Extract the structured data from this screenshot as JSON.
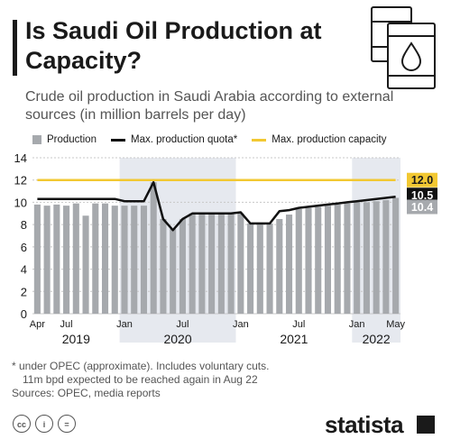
{
  "header": {
    "title": "Is Saudi Oil Production at Capacity?",
    "subtitle": "Crude oil production in Saudi Arabia according to external sources (in million barrels per day)",
    "icon": "oil-barrels-icon"
  },
  "legend": {
    "production": "Production",
    "quota": "Max. production quota*",
    "capacity": "Max. production capacity"
  },
  "colors": {
    "production": "#a6a9ad",
    "quota": "#111111",
    "capacity": "#f2c832",
    "shade": "#e6e9ef"
  },
  "chart_data": {
    "type": "bar",
    "x": [
      "2019-04",
      "2019-05",
      "2019-06",
      "2019-07",
      "2019-08",
      "2019-09",
      "2019-10",
      "2019-11",
      "2019-12",
      "2020-01",
      "2020-02",
      "2020-03",
      "2020-04",
      "2020-05",
      "2020-06",
      "2020-07",
      "2020-08",
      "2020-09",
      "2020-10",
      "2020-11",
      "2020-12",
      "2021-01",
      "2021-02",
      "2021-03",
      "2021-04",
      "2021-05",
      "2021-06",
      "2021-07",
      "2021-08",
      "2021-09",
      "2021-10",
      "2021-11",
      "2021-12",
      "2022-01",
      "2022-02",
      "2022-03",
      "2022-04",
      "2022-05"
    ],
    "series": [
      {
        "name": "Production",
        "type": "bar",
        "values": [
          9.8,
          9.7,
          9.8,
          9.7,
          9.9,
          8.8,
          9.9,
          9.9,
          9.7,
          9.7,
          9.7,
          9.7,
          11.8,
          8.5,
          7.6,
          8.5,
          9.0,
          8.9,
          8.9,
          8.9,
          9.0,
          9.0,
          8.1,
          8.1,
          8.1,
          8.5,
          8.9,
          9.4,
          9.5,
          9.6,
          9.7,
          9.8,
          9.9,
          10.0,
          10.0,
          10.1,
          10.2,
          10.4
        ]
      },
      {
        "name": "Max. production quota*",
        "type": "line",
        "values": [
          10.3,
          10.3,
          10.3,
          10.3,
          10.3,
          10.3,
          10.3,
          10.3,
          10.3,
          10.1,
          10.1,
          10.1,
          11.8,
          8.5,
          7.5,
          8.5,
          9.0,
          9.0,
          9.0,
          9.0,
          9.0,
          9.1,
          8.1,
          8.1,
          8.1,
          9.2,
          9.3,
          9.5,
          9.6,
          9.7,
          9.8,
          9.9,
          10.0,
          10.1,
          10.2,
          10.3,
          10.4,
          10.5
        ]
      },
      {
        "name": "Max. production capacity",
        "type": "line",
        "values": [
          12,
          12,
          12,
          12,
          12,
          12,
          12,
          12,
          12,
          12,
          12,
          12,
          12,
          12,
          12,
          12,
          12,
          12,
          12,
          12,
          12,
          12,
          12,
          12,
          12,
          12,
          12,
          12,
          12,
          12,
          12,
          12,
          12,
          12,
          12,
          12,
          12,
          12
        ]
      }
    ],
    "end_labels": [
      "12.0",
      "10.5",
      "10.4"
    ],
    "month_ticks": [
      "Apr",
      "Jul",
      "Jan",
      "Jul",
      "Jan",
      "Jul",
      "Jan",
      "May"
    ],
    "year_labels": [
      "2019",
      "2020",
      "2021",
      "2022"
    ],
    "y_ticks": [
      "0",
      "2",
      "4",
      "6",
      "8",
      "10",
      "12",
      "14"
    ],
    "ylim": [
      0,
      14
    ],
    "grid": true
  },
  "footer": {
    "notes": [
      "* under OPEC (approximate). Includes voluntary cuts.",
      "11m bpd expected to be reached again in Aug 22",
      "Sources: OPEC, media reports"
    ],
    "license_icons": [
      "cc-icon",
      "by-icon",
      "nd-icon"
    ],
    "brand": "statista"
  }
}
